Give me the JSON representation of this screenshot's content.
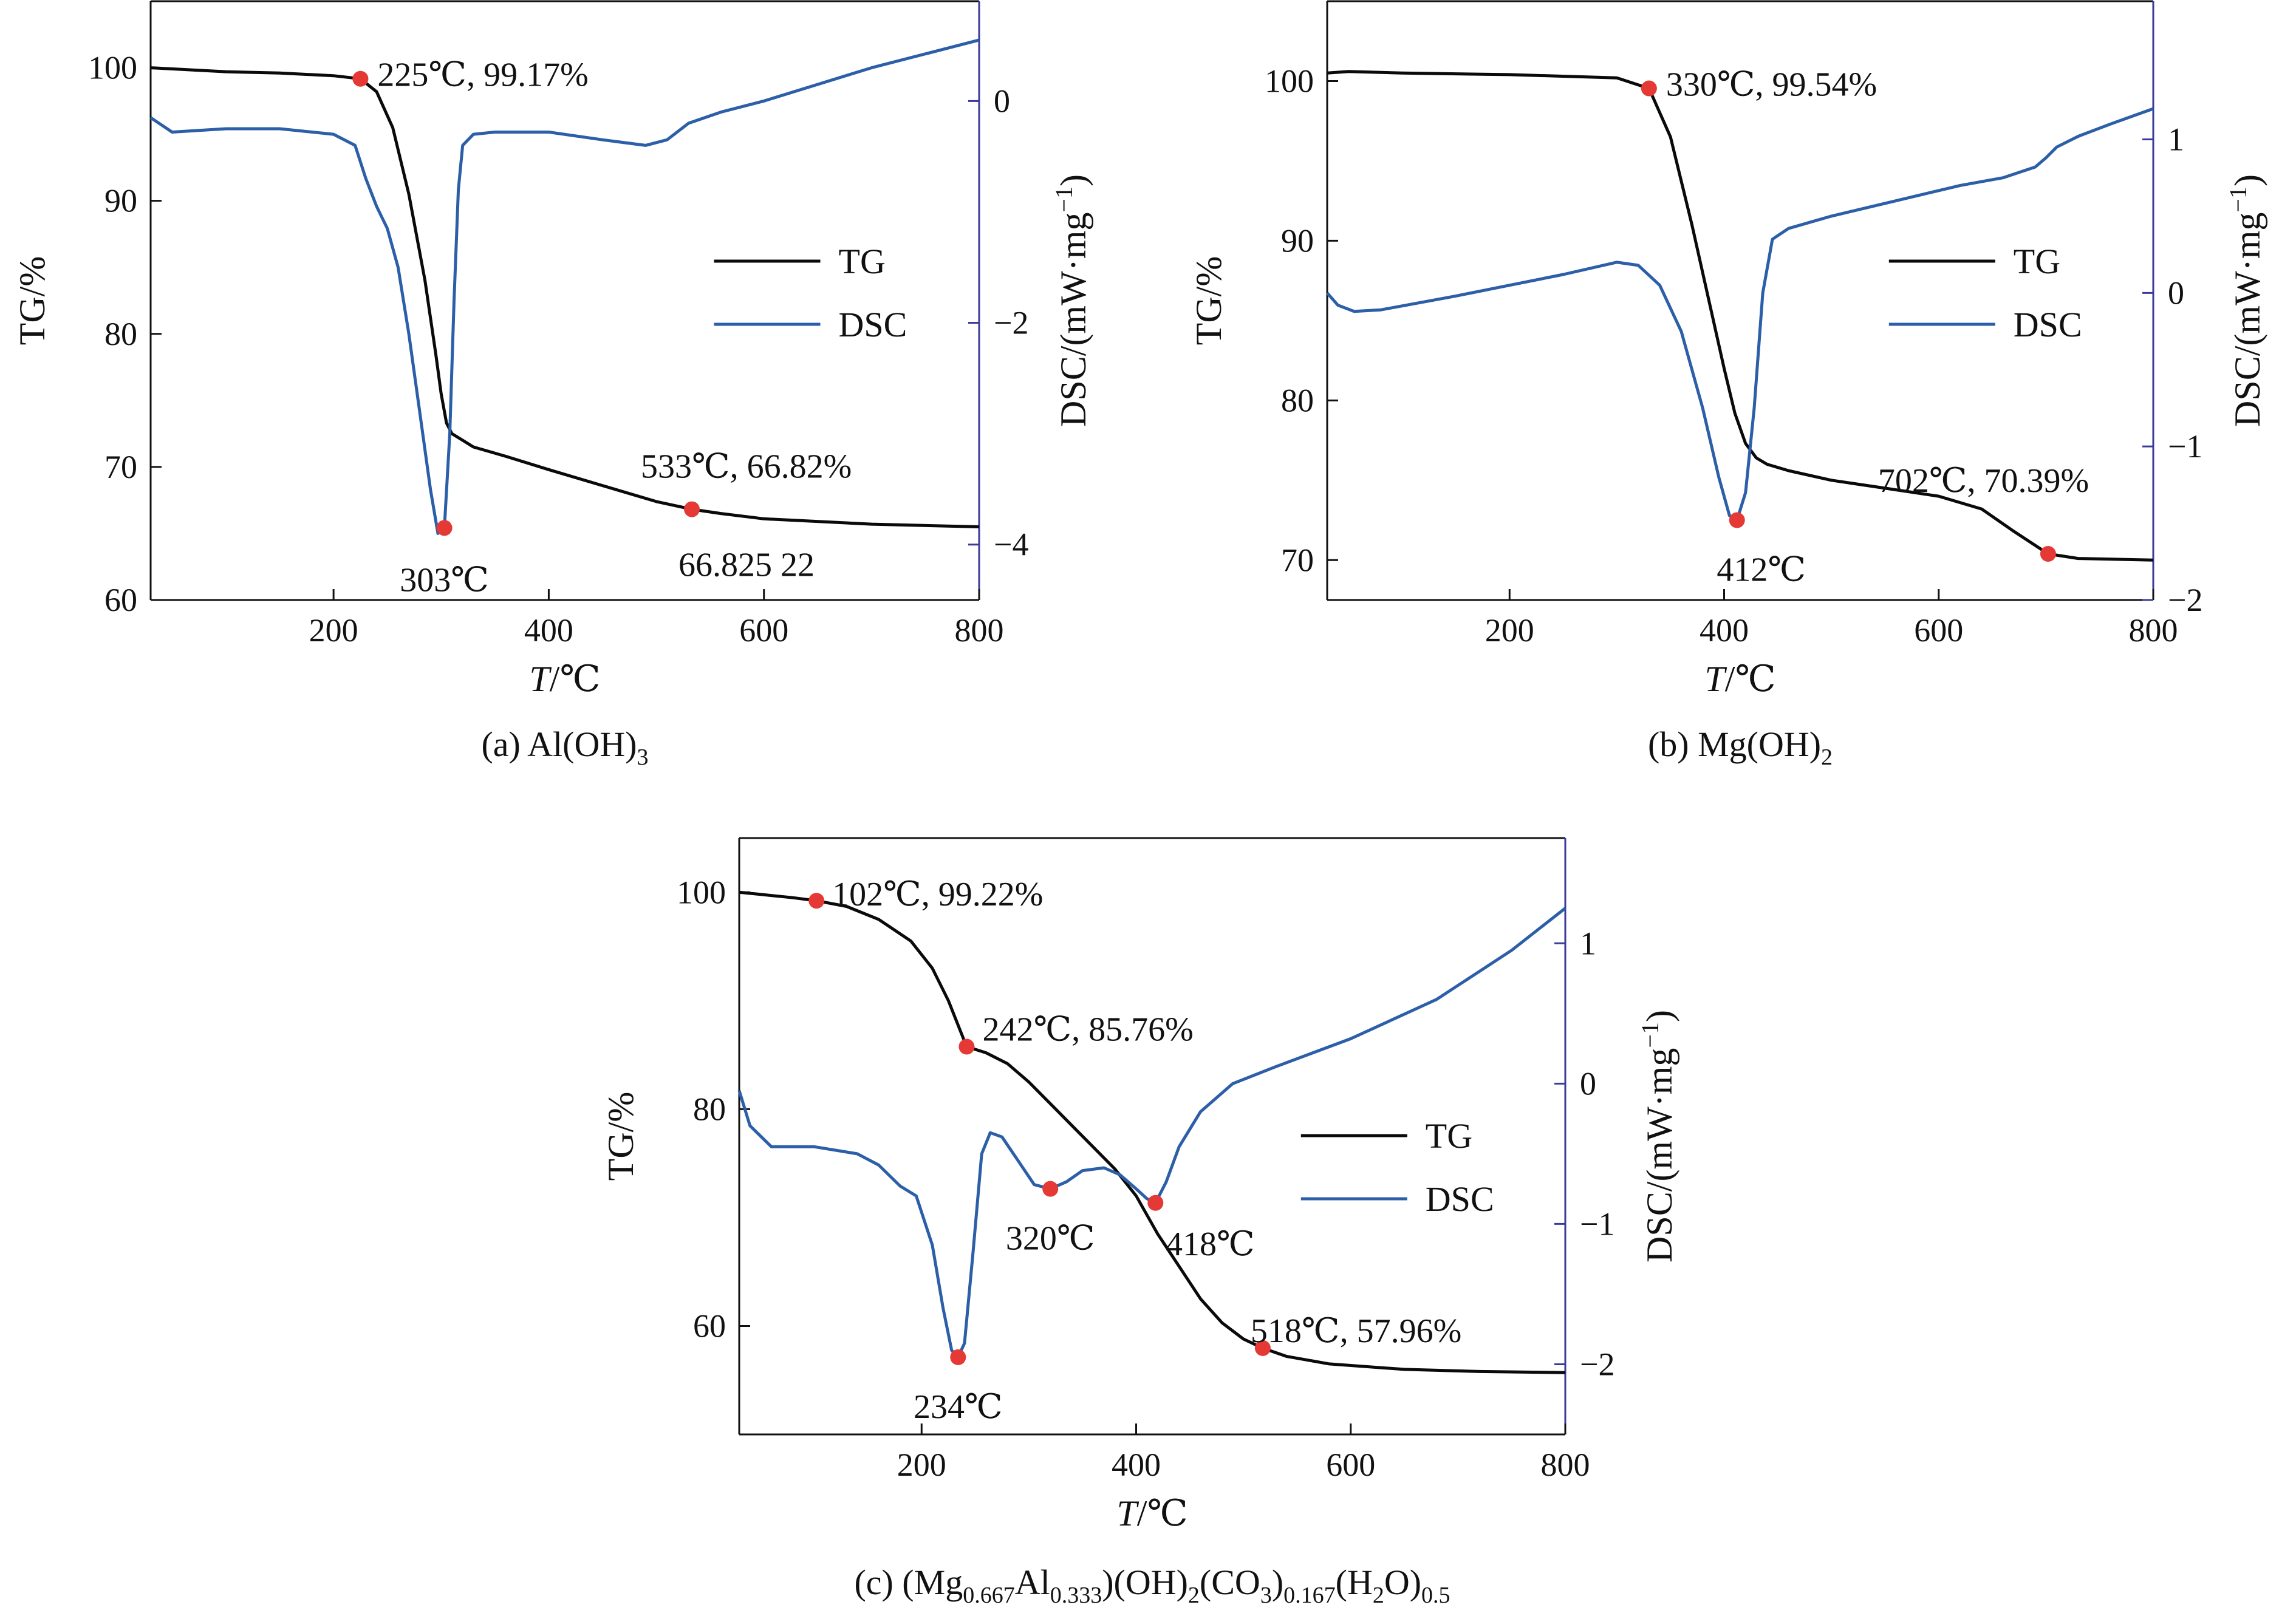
{
  "chart_data": [
    {
      "type": "line",
      "caption": "(a) Al(OH)",
      "caption_sub": "3",
      "xlabel_italic": "T",
      "xlabel_rest": "/℃",
      "ylabel_left": "TG/%",
      "ylabel_right": "DSC/(mW·mg",
      "ylabel_right_sup": "−1",
      "ylabel_right_end": ")",
      "xlim": [
        30,
        800
      ],
      "ylim_left": [
        60,
        105
      ],
      "ylim_right": [
        -4.5,
        0.9
      ],
      "xticks": [
        200,
        400,
        600,
        800
      ],
      "yticks_left": [
        60,
        70,
        80,
        90,
        100
      ],
      "yticks_right": [
        -4,
        -2,
        0
      ],
      "legend": [
        "TG",
        "DSC"
      ],
      "legend_position": "right",
      "series": [
        {
          "name": "TG",
          "axis": "left",
          "x": [
            30,
            100,
            150,
            200,
            225,
            240,
            255,
            270,
            285,
            295,
            300,
            305,
            310,
            330,
            360,
            400,
            450,
            500,
            533,
            560,
            600,
            700,
            800
          ],
          "y": [
            100,
            99.7,
            99.6,
            99.4,
            99.17,
            98.2,
            95.5,
            90.5,
            84,
            78.5,
            75.5,
            73.3,
            72.5,
            71.5,
            70.8,
            69.8,
            68.6,
            67.4,
            66.82,
            66.5,
            66.1,
            65.7,
            65.5
          ]
        },
        {
          "name": "DSC",
          "axis": "right",
          "x": [
            30,
            50,
            100,
            150,
            200,
            220,
            230,
            240,
            250,
            260,
            270,
            280,
            290,
            297,
            303,
            308,
            312,
            316,
            320,
            330,
            350,
            400,
            450,
            490,
            510,
            530,
            560,
            600,
            700,
            800
          ],
          "y": [
            -0.15,
            -0.28,
            -0.25,
            -0.25,
            -0.3,
            -0.4,
            -0.7,
            -0.95,
            -1.15,
            -1.5,
            -2.1,
            -2.8,
            -3.5,
            -3.9,
            -3.85,
            -3.0,
            -1.8,
            -0.8,
            -0.4,
            -0.3,
            -0.28,
            -0.28,
            -0.35,
            -0.4,
            -0.35,
            -0.2,
            -0.1,
            0.0,
            0.3,
            0.55
          ]
        }
      ],
      "annotations": [
        {
          "x": 225,
          "y": 99.17,
          "axis": "left",
          "label": "225℃, 99.17%",
          "dx": 28,
          "dy": -6,
          "anchor": "start"
        },
        {
          "x": 303,
          "y": -3.85,
          "axis": "right",
          "label": "303℃",
          "dx": 0,
          "dy": 86,
          "anchor": "middle"
        },
        {
          "x": 533,
          "y": 66.82,
          "axis": "left",
          "label": "533℃, 66.82%",
          "dx": -84,
          "dy": -70,
          "anchor": "start"
        },
        {
          "x": 533,
          "y": 66.82,
          "axis": "left",
          "label": "66.825 22",
          "dx": -22,
          "dy": 92,
          "anchor": "start",
          "nomarker": true
        }
      ]
    },
    {
      "type": "line",
      "caption": "(b) Mg(OH)",
      "caption_sub": "2",
      "xlabel_italic": "T",
      "xlabel_rest": "/℃",
      "ylabel_left": "TG/%",
      "ylabel_right": "DSC/(mW·mg",
      "ylabel_right_sup": "−1",
      "ylabel_right_end": ")",
      "xlim": [
        30,
        800
      ],
      "ylim_left": [
        67.5,
        105
      ],
      "ylim_right": [
        -2,
        1.9
      ],
      "xticks": [
        200,
        400,
        600,
        800
      ],
      "yticks_left": [
        70,
        80,
        90,
        100
      ],
      "yticks_right": [
        -2,
        -1,
        0,
        1
      ],
      "legend": [
        "TG",
        "DSC"
      ],
      "legend_position": "right",
      "series": [
        {
          "name": "TG",
          "axis": "left",
          "x": [
            30,
            50,
            100,
            200,
            300,
            330,
            350,
            370,
            385,
            400,
            410,
            420,
            430,
            440,
            460,
            500,
            550,
            600,
            640,
            670,
            702,
            730,
            800
          ],
          "y": [
            100.5,
            100.6,
            100.5,
            100.4,
            100.2,
            99.54,
            96.5,
            91,
            86.5,
            82,
            79.2,
            77.3,
            76.4,
            76.0,
            75.6,
            75.0,
            74.5,
            74.0,
            73.2,
            71.8,
            70.39,
            70.1,
            70.0
          ]
        },
        {
          "name": "DSC",
          "axis": "right",
          "x": [
            30,
            40,
            55,
            80,
            150,
            200,
            250,
            300,
            320,
            340,
            360,
            380,
            395,
            405,
            412,
            420,
            428,
            436,
            445,
            460,
            500,
            560,
            620,
            660,
            690,
            700,
            710,
            730,
            760,
            800
          ],
          "y": [
            0.0,
            -0.08,
            -0.12,
            -0.11,
            -0.02,
            0.05,
            0.12,
            0.2,
            0.18,
            0.05,
            -0.25,
            -0.75,
            -1.2,
            -1.45,
            -1.48,
            -1.3,
            -0.75,
            0.0,
            0.35,
            0.42,
            0.5,
            0.6,
            0.7,
            0.75,
            0.82,
            0.88,
            0.95,
            1.02,
            1.1,
            1.2
          ]
        }
      ],
      "annotations": [
        {
          "x": 330,
          "y": 99.54,
          "axis": "left",
          "label": "330℃, 99.54%",
          "dx": 28,
          "dy": -6,
          "anchor": "start"
        },
        {
          "x": 412,
          "y": -1.48,
          "axis": "right",
          "label": "412℃",
          "dx": 40,
          "dy": 82,
          "anchor": "middle"
        },
        {
          "x": 702,
          "y": 70.39,
          "axis": "left",
          "label": "702℃, 70.39%",
          "dx": -280,
          "dy": -120,
          "anchor": "start"
        }
      ]
    },
    {
      "type": "line",
      "caption": "(c) (Mg",
      "caption_parts": [
        {
          "t": "(c) (Mg",
          "sub": false
        },
        {
          "t": "0.667",
          "sub": true
        },
        {
          "t": "Al",
          "sub": false
        },
        {
          "t": "0.333",
          "sub": true
        },
        {
          "t": ")(OH)",
          "sub": false
        },
        {
          "t": "2",
          "sub": true
        },
        {
          "t": "(CO",
          "sub": false
        },
        {
          "t": "3",
          "sub": true
        },
        {
          "t": ")",
          "sub": false
        },
        {
          "t": "0.167",
          "sub": true
        },
        {
          "t": "(H",
          "sub": false
        },
        {
          "t": "2",
          "sub": true
        },
        {
          "t": "O)",
          "sub": false
        },
        {
          "t": "0.5",
          "sub": true
        }
      ],
      "xlabel_italic": "T",
      "xlabel_rest": "/℃",
      "ylabel_left": "TG/%",
      "ylabel_right": "DSC/(mW·mg",
      "ylabel_right_sup": "−1",
      "ylabel_right_end": ")",
      "xlim": [
        30,
        800
      ],
      "ylim_left": [
        50,
        105
      ],
      "ylim_right": [
        -2.5,
        1.75
      ],
      "xticks": [
        200,
        400,
        600,
        800
      ],
      "yticks_left": [
        60,
        80,
        100
      ],
      "yticks_right": [
        -2,
        -1,
        0,
        1
      ],
      "legend": [
        "TG",
        "DSC"
      ],
      "legend_position": "right",
      "series": [
        {
          "name": "TG",
          "axis": "left",
          "x": [
            30,
            50,
            80,
            102,
            130,
            160,
            190,
            210,
            225,
            235,
            242,
            260,
            280,
            300,
            320,
            350,
            380,
            400,
            420,
            440,
            460,
            480,
            500,
            518,
            540,
            580,
            650,
            720,
            800
          ],
          "y": [
            100,
            99.8,
            99.5,
            99.22,
            98.7,
            97.5,
            95.5,
            93.0,
            90.0,
            87.5,
            85.76,
            85.2,
            84.2,
            82.5,
            80.5,
            77.5,
            74.5,
            72.0,
            68.5,
            65.5,
            62.5,
            60.3,
            58.8,
            57.96,
            57.2,
            56.5,
            56.0,
            55.8,
            55.7
          ]
        },
        {
          "name": "DSC",
          "axis": "right",
          "x": [
            30,
            40,
            60,
            100,
            140,
            160,
            180,
            195,
            210,
            220,
            228,
            234,
            240,
            248,
            256,
            264,
            275,
            290,
            305,
            320,
            335,
            350,
            370,
            385,
            400,
            410,
            418,
            428,
            440,
            460,
            490,
            530,
            600,
            680,
            750,
            800
          ],
          "y": [
            -0.05,
            -0.3,
            -0.45,
            -0.45,
            -0.5,
            -0.58,
            -0.73,
            -0.8,
            -1.15,
            -1.6,
            -1.9,
            -1.95,
            -1.85,
            -1.2,
            -0.5,
            -0.35,
            -0.38,
            -0.55,
            -0.72,
            -0.75,
            -0.7,
            -0.62,
            -0.6,
            -0.65,
            -0.75,
            -0.82,
            -0.85,
            -0.7,
            -0.45,
            -0.2,
            0.0,
            0.12,
            0.32,
            0.6,
            0.95,
            1.25
          ]
        }
      ],
      "annotations": [
        {
          "x": 102,
          "y": 99.22,
          "axis": "left",
          "label": "102℃, 99.22%",
          "dx": 26,
          "dy": -10,
          "anchor": "start"
        },
        {
          "x": 242,
          "y": 85.76,
          "axis": "left",
          "label": "242℃, 85.76%",
          "dx": 26,
          "dy": -28,
          "anchor": "start"
        },
        {
          "x": 234,
          "y": -1.95,
          "axis": "right",
          "label": "234℃",
          "dx": 0,
          "dy": 82,
          "anchor": "middle"
        },
        {
          "x": 320,
          "y": -0.75,
          "axis": "right",
          "label": "320℃",
          "dx": 0,
          "dy": 82,
          "anchor": "middle"
        },
        {
          "x": 418,
          "y": -0.85,
          "axis": "right",
          "label": "418℃",
          "dx": 90,
          "dy": 68,
          "anchor": "middle"
        },
        {
          "x": 518,
          "y": 57.96,
          "axis": "left",
          "label": "518℃, 57.96%",
          "dx": -20,
          "dy": -28,
          "anchor": "start"
        }
      ]
    }
  ],
  "colors": {
    "tg": "#0a0a0a",
    "dsc": "#2c5fa8",
    "marker": "#e53935",
    "right_axis": "#3b3a9a"
  }
}
